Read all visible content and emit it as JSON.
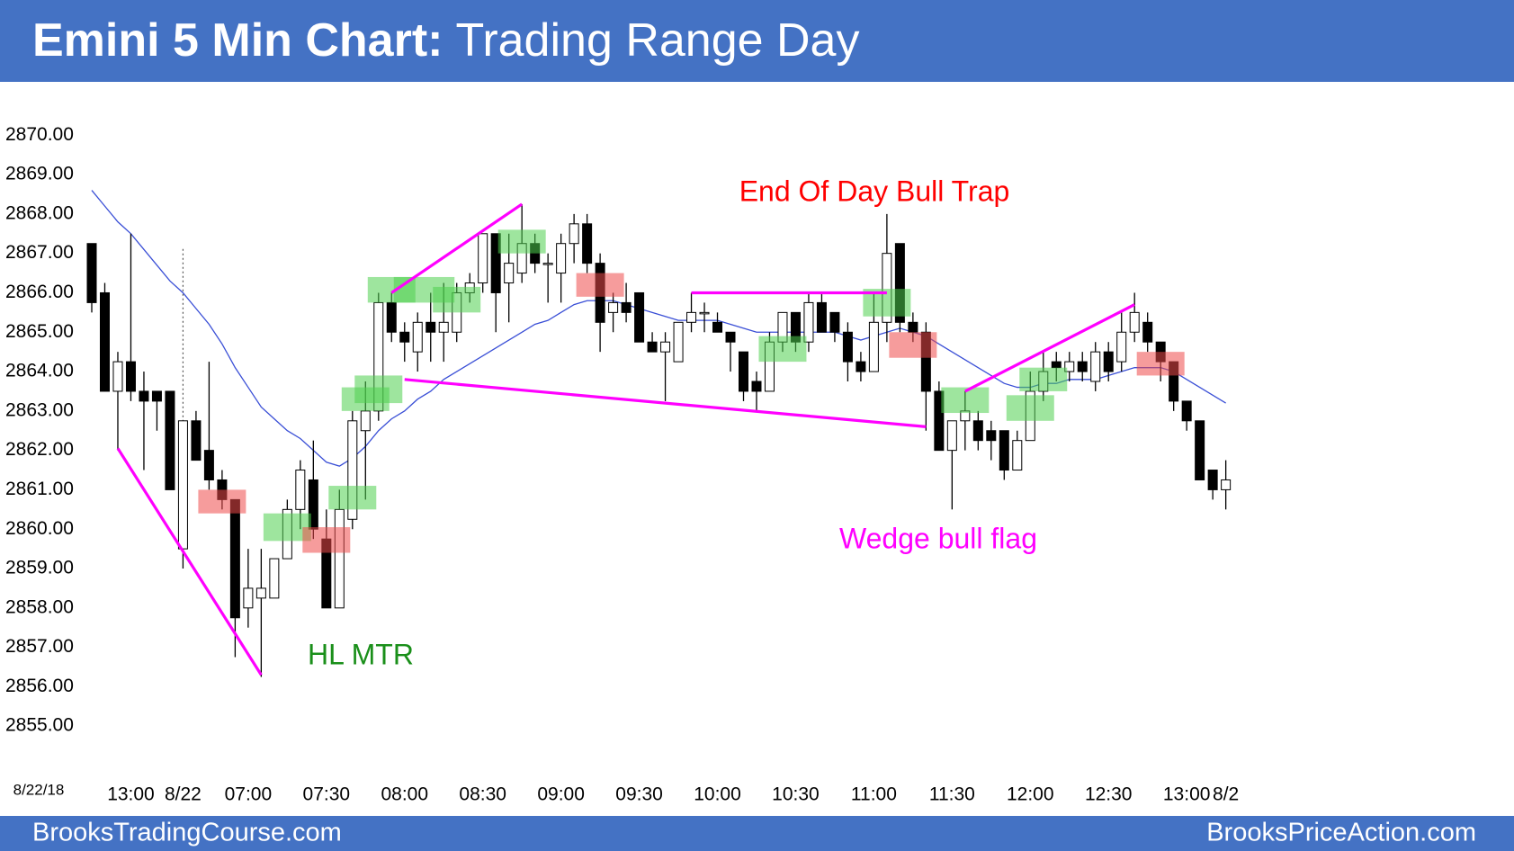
{
  "chart_data": {
    "type": "candlestick",
    "title": {
      "lead": "Emini 5 Min Chart:",
      "rest": "Trading Range Day"
    },
    "footer": {
      "left": "BrooksTradingCourse.com",
      "right": "BrooksPriceAction.com"
    },
    "date_label": "8/22/18",
    "annotations": {
      "bull_trap": "End Of Day Bull Trap",
      "wedge": "Wedge bull flag",
      "hl_mtr": "HL MTR"
    },
    "categories": [
      null,
      null,
      null,
      "13:00",
      null,
      null,
      null,
      "8/22",
      null,
      null,
      null,
      null,
      "07:00",
      null,
      null,
      null,
      null,
      null,
      "07:30",
      null,
      null,
      null,
      null,
      null,
      "08:00",
      null,
      null,
      null,
      null,
      null,
      "08:30",
      null,
      null,
      null,
      null,
      null,
      "09:00",
      null,
      null,
      null,
      null,
      null,
      "09:30",
      null,
      null,
      null,
      null,
      null,
      "10:00",
      null,
      null,
      null,
      null,
      null,
      "10:30",
      null,
      null,
      null,
      null,
      null,
      "11:00",
      null,
      null,
      null,
      null,
      null,
      "11:30",
      null,
      null,
      null,
      null,
      null,
      "12:00",
      null,
      null,
      null,
      null,
      null,
      "12:30",
      null,
      null,
      null,
      null,
      null,
      "13:00",
      null,
      null,
      "8/2"
    ],
    "open": [
      2867.25,
      2866.0,
      2863.5,
      2864.25,
      2863.5,
      2863.5,
      2863.5,
      2859.5,
      2862.75,
      2862.0,
      2861.25,
      2860.75,
      2858.0,
      2858.25,
      2858.25,
      2859.25,
      2860.5,
      2861.25,
      2859.75,
      2858.0,
      2860.25,
      2862.5,
      2863.0,
      2865.75,
      2865.0,
      2864.5,
      2865.25,
      2865.0,
      2865.0,
      2866.0,
      2866.25,
      2867.5,
      2866.25,
      2866.5,
      2867.25,
      2866.75,
      2866.5,
      2867.25,
      2867.75,
      2866.75,
      2865.5,
      2865.75,
      2866.0,
      2864.75,
      2864.5,
      2864.25,
      2865.25,
      2865.5,
      2865.25,
      2865.0,
      2864.5,
      2863.75,
      2863.5,
      2864.75,
      2865.5,
      2864.75,
      2865.75,
      2865.5,
      2865.0,
      2864.25,
      2864.0,
      2865.25,
      2867.25,
      2865.25,
      2865.0,
      2863.5,
      2862.0,
      2862.75,
      2862.75,
      2862.5,
      2862.5,
      2861.5,
      2862.25,
      2863.5,
      2864.25,
      2864.0,
      2864.25,
      2863.75,
      2864.5,
      2864.25,
      2865.0,
      2865.25,
      2864.75,
      2864.25,
      2863.25,
      2862.75,
      2861.5,
      2861.0
    ],
    "high": [
      2867.25,
      2866.25,
      2864.5,
      2867.5,
      2864.0,
      2863.5,
      2863.5,
      2862.75,
      2863.0,
      2864.25,
      2861.5,
      2860.75,
      2859.5,
      2859.5,
      2859.25,
      2860.75,
      2861.75,
      2862.25,
      2860.5,
      2861.0,
      2863.0,
      2863.75,
      2866.0,
      2866.0,
      2865.25,
      2865.5,
      2866.0,
      2866.25,
      2866.25,
      2866.5,
      2867.5,
      2867.5,
      2867.5,
      2868.25,
      2867.5,
      2867.0,
      2867.5,
      2868.0,
      2868.0,
      2867.0,
      2866.0,
      2866.25,
      2866.0,
      2865.0,
      2865.0,
      2865.25,
      2866.0,
      2865.75,
      2865.5,
      2865.0,
      2864.5,
      2864.0,
      2865.0,
      2865.5,
      2865.5,
      2866.0,
      2866.0,
      2865.5,
      2865.25,
      2864.5,
      2866.0,
      2868.0,
      2867.25,
      2865.5,
      2865.25,
      2863.75,
      2862.75,
      2863.5,
      2863.0,
      2862.75,
      2862.5,
      2862.5,
      2864.0,
      2864.5,
      2864.5,
      2864.5,
      2864.5,
      2864.75,
      2864.75,
      2865.5,
      2866.0,
      2865.5,
      2864.75,
      2864.25,
      2863.25,
      2862.75,
      2861.5,
      2861.75
    ],
    "low": [
      2865.5,
      2863.5,
      2862.0,
      2863.25,
      2861.5,
      2862.5,
      2861.0,
      2859.0,
      2861.75,
      2861.0,
      2860.5,
      2856.75,
      2857.5,
      2856.25,
      2858.25,
      2859.25,
      2860.0,
      2859.75,
      2858.0,
      2858.0,
      2860.0,
      2860.75,
      2862.75,
      2864.75,
      2864.25,
      2864.0,
      2864.25,
      2864.25,
      2864.75,
      2865.75,
      2866.0,
      2865.0,
      2865.25,
      2866.25,
      2866.5,
      2865.75,
      2865.75,
      2866.75,
      2866.5,
      2864.5,
      2865.0,
      2865.25,
      2864.75,
      2864.5,
      2863.25,
      2864.25,
      2865.0,
      2865.0,
      2865.0,
      2864.0,
      2863.25,
      2863.0,
      2863.5,
      2864.5,
      2864.5,
      2864.5,
      2865.0,
      2864.75,
      2863.75,
      2863.75,
      2864.0,
      2864.75,
      2865.0,
      2864.75,
      2862.5,
      2862.0,
      2860.5,
      2862.0,
      2862.0,
      2861.75,
      2861.25,
      2861.5,
      2862.25,
      2863.25,
      2863.75,
      2863.75,
      2863.75,
      2863.5,
      2863.75,
      2864.0,
      2864.75,
      2864.5,
      2863.75,
      2863.0,
      2862.5,
      2861.25,
      2860.75,
      2860.5
    ],
    "close": [
      2865.75,
      2863.5,
      2864.25,
      2863.5,
      2863.25,
      2863.25,
      2861.0,
      2862.75,
      2861.75,
      2861.25,
      2860.75,
      2857.75,
      2858.5,
      2858.5,
      2859.25,
      2860.5,
      2861.5,
      2860.0,
      2858.0,
      2860.5,
      2862.75,
      2863.0,
      2865.75,
      2865.0,
      2864.75,
      2865.25,
      2865.0,
      2865.25,
      2866.0,
      2866.25,
      2867.5,
      2866.0,
      2866.75,
      2867.25,
      2866.75,
      2866.75,
      2867.25,
      2867.75,
      2866.75,
      2865.25,
      2865.75,
      2865.5,
      2864.75,
      2864.5,
      2864.75,
      2865.25,
      2865.5,
      2865.5,
      2865.0,
      2864.75,
      2863.5,
      2863.5,
      2864.75,
      2865.5,
      2864.75,
      2865.75,
      2865.0,
      2865.0,
      2864.25,
      2864.0,
      2865.25,
      2867.0,
      2865.25,
      2865.0,
      2863.5,
      2862.0,
      2862.75,
      2863.0,
      2862.25,
      2862.25,
      2861.5,
      2862.25,
      2863.5,
      2864.0,
      2864.1,
      2864.25,
      2864.0,
      2864.5,
      2864.0,
      2865.0,
      2865.5,
      2864.75,
      2864.25,
      2863.25,
      2862.75,
      2861.25,
      2861.0,
      2861.25
    ],
    "up_color": "#ffffff",
    "down_color": "#000000",
    "ema": {
      "color": "#3a4fd6",
      "values": [
        2868.6,
        2868.2,
        2867.8,
        2867.5,
        2867.1,
        2866.7,
        2866.3,
        2866.0,
        2865.6,
        2865.2,
        2864.7,
        2864.1,
        2863.6,
        2863.1,
        2862.8,
        2862.5,
        2862.3,
        2862.0,
        2861.7,
        2861.6,
        2861.8,
        2862.1,
        2862.5,
        2862.8,
        2863.0,
        2863.3,
        2863.5,
        2863.8,
        2864.0,
        2864.2,
        2864.4,
        2864.6,
        2864.8,
        2865.0,
        2865.2,
        2865.3,
        2865.5,
        2865.7,
        2865.8,
        2865.8,
        2865.8,
        2865.7,
        2865.6,
        2865.5,
        2865.4,
        2865.3,
        2865.3,
        2865.3,
        2865.3,
        2865.2,
        2865.1,
        2865.0,
        2865.0,
        2865.0,
        2865.0,
        2865.0,
        2865.0,
        2865.0,
        2864.9,
        2864.8,
        2864.9,
        2865.0,
        2865.1,
        2865.0,
        2864.9,
        2864.7,
        2864.5,
        2864.3,
        2864.1,
        2863.9,
        2863.7,
        2863.6,
        2863.6,
        2863.7,
        2863.7,
        2863.8,
        2863.8,
        2863.8,
        2863.9,
        2864.0,
        2864.1,
        2864.1,
        2864.1,
        2864.0,
        2863.8,
        2863.6,
        2863.4,
        2863.2
      ]
    },
    "signals": [
      {
        "color": "#4fcf4f",
        "x": [
          14,
          16
        ],
        "y": [
          2859.7,
          2860.4
        ]
      },
      {
        "color": "#4fcf4f",
        "x": [
          19,
          21
        ],
        "y": [
          2860.5,
          2861.1
        ]
      },
      {
        "color": "#4fcf4f",
        "x": [
          20,
          22
        ],
        "y": [
          2863.0,
          2863.6
        ]
      },
      {
        "color": "#4fcf4f",
        "x": [
          21,
          23
        ],
        "y": [
          2863.2,
          2863.9
        ]
      },
      {
        "color": "#4fcf4f",
        "x": [
          22,
          24
        ],
        "y": [
          2865.75,
          2866.4
        ]
      },
      {
        "color": "#4fcf4f",
        "x": [
          24,
          27
        ],
        "y": [
          2865.75,
          2866.4
        ]
      },
      {
        "color": "#4fcf4f",
        "x": [
          27,
          29
        ],
        "y": [
          2865.5,
          2866.15
        ]
      },
      {
        "color": "#4fcf4f",
        "x": [
          32,
          34
        ],
        "y": [
          2867.0,
          2867.6
        ]
      },
      {
        "color": "#4fcf4f",
        "x": [
          52,
          54
        ],
        "y": [
          2864.25,
          2864.9
        ]
      },
      {
        "color": "#4fcf4f",
        "x": [
          60,
          62
        ],
        "y": [
          2865.4,
          2866.1
        ]
      },
      {
        "color": "#4fcf4f",
        "x": [
          66,
          68
        ],
        "y": [
          2862.95,
          2863.6
        ]
      },
      {
        "color": "#4fcf4f",
        "x": [
          71,
          73
        ],
        "y": [
          2862.75,
          2863.4
        ]
      },
      {
        "color": "#4fcf4f",
        "x": [
          72,
          74
        ],
        "y": [
          2863.5,
          2864.1
        ]
      },
      {
        "color": "#ee4b4b",
        "x": [
          9,
          11
        ],
        "y": [
          2860.4,
          2861.0
        ]
      },
      {
        "color": "#ee4b4b",
        "x": [
          17,
          19
        ],
        "y": [
          2859.4,
          2860.05
        ]
      },
      {
        "color": "#ee4b4b",
        "x": [
          38,
          40
        ],
        "y": [
          2865.9,
          2866.5
        ]
      },
      {
        "color": "#ee4b4b",
        "x": [
          62,
          64
        ],
        "y": [
          2864.35,
          2865.0
        ]
      },
      {
        "color": "#ee4b4b",
        "x": [
          81,
          83
        ],
        "y": [
          2863.9,
          2864.5
        ]
      }
    ],
    "trend_color": "#ff00ff",
    "trend_lines": [
      {
        "x": [
          2,
          13
        ],
        "y": [
          2862.05,
          2856.3
        ]
      },
      {
        "x": [
          23,
          33
        ],
        "y": [
          2866.0,
          2868.25
        ]
      },
      {
        "x": [
          24,
          64
        ],
        "y": [
          2863.8,
          2862.6
        ]
      },
      {
        "x": [
          46,
          61
        ],
        "y": [
          2866.0,
          2866.0
        ]
      },
      {
        "x": [
          67,
          80
        ],
        "y": [
          2863.5,
          2865.7
        ]
      }
    ],
    "day_break": 7,
    "ylim": [
      2854.1,
      2871.0
    ],
    "yticks": [
      {
        "value": 2855,
        "label": "2855.00"
      },
      {
        "value": 2856,
        "label": "2856.00"
      },
      {
        "value": 2857,
        "label": "2857.00"
      },
      {
        "value": 2858,
        "label": "2858.00"
      },
      {
        "value": 2859,
        "label": "2859.00"
      },
      {
        "value": 2860,
        "label": "2860.00"
      },
      {
        "value": 2861,
        "label": "2861.00"
      },
      {
        "value": 2862,
        "label": "2862.00"
      },
      {
        "value": 2863,
        "label": "2863.00"
      },
      {
        "value": 2864,
        "label": "2864.00"
      },
      {
        "value": 2865,
        "label": "2865.00"
      },
      {
        "value": 2866,
        "label": "2866.00"
      },
      {
        "value": 2867,
        "label": "2867.00"
      },
      {
        "value": 2868,
        "label": "2868.00"
      },
      {
        "value": 2869,
        "label": "2869.00"
      },
      {
        "value": 2870,
        "label": "2870.00"
      }
    ],
    "grid": false
  }
}
